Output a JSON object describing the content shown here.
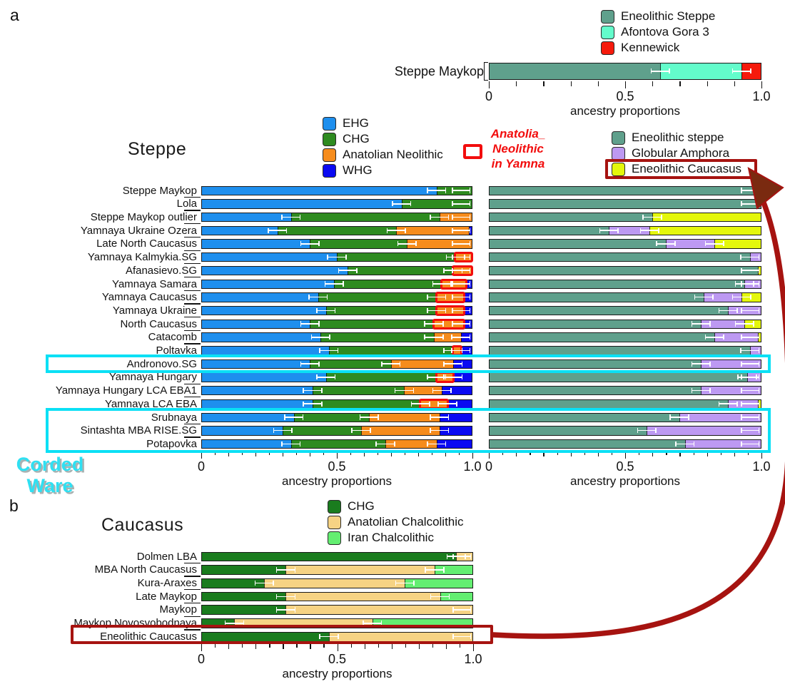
{
  "figure": {
    "panel_a": {
      "label": "a",
      "title": "Steppe",
      "top_legend": {
        "items": [
          {
            "label": "Eneolithic Steppe",
            "color": "#5fa08c"
          },
          {
            "label": "Afontova Gora 3",
            "color": "#63fccb"
          },
          {
            "label": "Kennewick",
            "color": "#f51a0c"
          }
        ]
      },
      "left_legend": {
        "items": [
          {
            "label": "EHG",
            "color": "#1e8fee"
          },
          {
            "label": "CHG",
            "color": "#2e8b20"
          },
          {
            "label": "Anatolian Neolithic",
            "color": "#f68c1c"
          },
          {
            "label": "WHG",
            "color": "#0a0af2"
          }
        ]
      },
      "right_legend": {
        "items": [
          {
            "label": "Eneolithic steppe",
            "color": "#5fa08c"
          },
          {
            "label": "Globular Amphora",
            "color": "#bd99f2"
          },
          {
            "label": "Eneolithic Caucasus",
            "color": "#e4f70c"
          }
        ],
        "boxed_item": "Eneolithic Caucasus",
        "box_color": "#a61310"
      },
      "annotation": {
        "lines": [
          "Anatolia_",
          "Neolithic",
          "in Yamna"
        ],
        "color": "#f20d0d"
      },
      "corded_ware": {
        "lines": [
          "Corded",
          "Ware"
        ],
        "color": "#2fe0f2",
        "row_groups": [
          [
            "Andronovo.SG"
          ],
          [
            "Srubnaya",
            "Sintashta MBA RISE.SG",
            "Potapovka"
          ]
        ]
      }
    },
    "panel_b": {
      "label": "b",
      "title": "Caucasus",
      "legend": {
        "items": [
          {
            "label": "CHG",
            "color": "#1a7c1e"
          },
          {
            "label": "Anatolian Chalcolithic",
            "color": "#f6d384"
          },
          {
            "label": "Iran Chalcolithic",
            "color": "#63ee71"
          }
        ]
      },
      "highlight_row": "Eneolithic Caucasus",
      "highlight_box_color": "#a61310"
    }
  },
  "chart_data": [
    {
      "id": "top",
      "type": "bar",
      "orientation": "horizontal_stacked",
      "categories": [
        "Steppe Maykop"
      ],
      "series": [
        {
          "name": "Eneolithic Steppe",
          "color": "#5fa08c",
          "values": [
            0.63
          ]
        },
        {
          "name": "Afontova Gora 3",
          "color": "#63fccb",
          "values": [
            0.3
          ]
        },
        {
          "name": "Kennewick",
          "color": "#f51a0c",
          "values": [
            0.07
          ]
        }
      ],
      "xlabel": "ancestry proportions",
      "xlim": [
        0,
        1
      ],
      "xticks": [
        {
          "v": 0,
          "label": "0"
        },
        {
          "v": 0.5,
          "label": "0.5"
        },
        {
          "v": 1,
          "label": "1.0"
        }
      ]
    },
    {
      "id": "steppe_left",
      "type": "bar",
      "orientation": "horizontal_stacked",
      "categories": [
        "Steppe Maykop",
        "Lola",
        "Steppe Maykop outlier",
        "Yamnaya Ukraine Ozera",
        "Late North Caucasus",
        "Yamnaya Kalmykia.SG",
        "Afanasievo.SG",
        "Yamnaya Samara",
        "Yamnaya Caucasus",
        "Yamnaya Ukraine",
        "North Caucasus",
        "Catacomb",
        "Poltavka",
        "Andronovo.SG",
        "Yamnaya Hungary",
        "Yamnaya Hungary LCA EBA1",
        "Yamnaya LCA EBA",
        "Srubnaya",
        "Sintashta MBA RISE.SG",
        "Potapovka"
      ],
      "series": [
        {
          "name": "EHG",
          "color": "#1e8fee",
          "values": [
            0.87,
            0.74,
            0.33,
            0.28,
            0.4,
            0.5,
            0.54,
            0.49,
            0.43,
            0.46,
            0.4,
            0.44,
            0.47,
            0.4,
            0.46,
            0.41,
            0.41,
            0.34,
            0.3,
            0.33
          ]
        },
        {
          "name": "CHG",
          "color": "#2e8b20",
          "values": [
            0.13,
            0.26,
            0.55,
            0.44,
            0.36,
            0.44,
            0.39,
            0.4,
            0.44,
            0.41,
            0.46,
            0.42,
            0.46,
            0.3,
            0.41,
            0.34,
            0.4,
            0.28,
            0.29,
            0.35
          ]
        },
        {
          "name": "Anatolian Neolithic",
          "color": "#f68c1c",
          "values": [
            0,
            0,
            0.12,
            0.27,
            0.24,
            0.06,
            0.07,
            0.09,
            0.1,
            0.1,
            0.11,
            0.1,
            0.03,
            0.23,
            0.06,
            0.14,
            0.1,
            0.26,
            0.29,
            0.19
          ]
        },
        {
          "name": "WHG",
          "color": "#0a0af2",
          "values": [
            0,
            0,
            0,
            0.01,
            0,
            0,
            0,
            0.02,
            0.03,
            0.03,
            0.03,
            0.04,
            0.04,
            0.07,
            0.07,
            0.11,
            0.09,
            0.12,
            0.12,
            0.13
          ]
        }
      ],
      "highlight": {
        "label": "Anatolia_Neolithic in Yamna",
        "series": "Anatolian Neolithic",
        "color": "#f20d0d",
        "rows": [
          5,
          6,
          7,
          8,
          9,
          10,
          12,
          14,
          16
        ]
      },
      "xlabel": "ancestry proportions",
      "xlim": [
        0,
        1
      ],
      "xticks": [
        {
          "v": 0,
          "label": "0"
        },
        {
          "v": 0.5,
          "label": "0.5"
        },
        {
          "v": 1,
          "label": "1.0"
        }
      ]
    },
    {
      "id": "steppe_right",
      "type": "bar",
      "orientation": "horizontal_stacked",
      "categories": [
        "Steppe Maykop",
        "Lola",
        "Steppe Maykop outlier",
        "Yamnaya Ukraine Ozera",
        "Late North Caucasus",
        "Yamnaya Kalmykia.SG",
        "Afanasievo.SG",
        "Yamnaya Samara",
        "Yamnaya Caucasus",
        "Yamnaya Ukraine",
        "North Caucasus",
        "Catacomb",
        "Poltavka",
        "Andronovo.SG",
        "Yamnaya Hungary",
        "Yamnaya Hungary LCA EBA1",
        "Yamnaya LCA EBA",
        "Srubnaya",
        "Sintashta MBA RISE.SG",
        "Potapovka"
      ],
      "series": [
        {
          "name": "Eneolithic steppe",
          "color": "#5fa08c",
          "values": [
            1.0,
            1.0,
            0.6,
            0.44,
            0.65,
            0.96,
            0.99,
            0.94,
            0.79,
            0.88,
            0.78,
            0.83,
            0.96,
            0.78,
            0.95,
            0.78,
            0.88,
            0.7,
            0.58,
            0.72
          ]
        },
        {
          "name": "Globular Amphora",
          "color": "#bd99f2",
          "values": [
            0,
            0,
            0,
            0.15,
            0.18,
            0.04,
            0,
            0.06,
            0.14,
            0.12,
            0.16,
            0.16,
            0.04,
            0.22,
            0.05,
            0.22,
            0.11,
            0.3,
            0.42,
            0.28
          ]
        },
        {
          "name": "Eneolithic Caucasus",
          "color": "#e4f70c",
          "values": [
            0,
            0,
            0.4,
            0.41,
            0.17,
            0,
            0.01,
            0,
            0.07,
            0,
            0.06,
            0.01,
            0,
            0,
            0,
            0,
            0.01,
            0,
            0,
            0
          ]
        }
      ],
      "xlabel": "ancestry proportions",
      "xlim": [
        0,
        1
      ],
      "xticks": [
        {
          "v": 0,
          "label": "0"
        },
        {
          "v": 0.5,
          "label": "0.5"
        },
        {
          "v": 1,
          "label": "1.0"
        }
      ]
    },
    {
      "id": "caucasus",
      "type": "bar",
      "orientation": "horizontal_stacked",
      "categories": [
        "Dolmen LBA",
        "MBA North Caucasus",
        "Kura-Araxes",
        "Late Maykop",
        "Maykop",
        "Maykop Novosvobodnaya",
        "Eneolithic Caucasus"
      ],
      "series": [
        {
          "name": "CHG",
          "color": "#1a7c1e",
          "values": [
            0.94,
            0.31,
            0.23,
            0.31,
            0.31,
            0.12,
            0.47
          ]
        },
        {
          "name": "Anatolian Chalcolithic",
          "color": "#f6d384",
          "values": [
            0.06,
            0.55,
            0.52,
            0.57,
            0.69,
            0.51,
            0.53
          ]
        },
        {
          "name": "Iran Chalcolithic",
          "color": "#63ee71",
          "values": [
            0,
            0.14,
            0.25,
            0.12,
            0,
            0.37,
            0
          ]
        }
      ],
      "xlabel": "ancestry proportions",
      "xlim": [
        0,
        1
      ],
      "xticks": [
        {
          "v": 0,
          "label": "0"
        },
        {
          "v": 0.5,
          "label": "0.5"
        },
        {
          "v": 1,
          "label": "1.0"
        }
      ]
    }
  ]
}
